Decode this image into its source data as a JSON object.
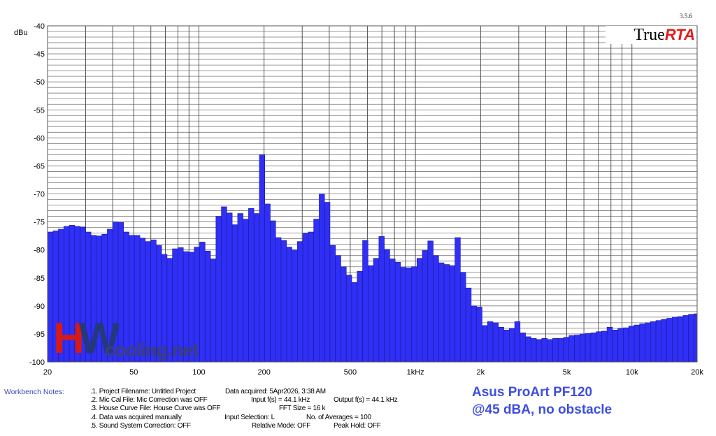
{
  "chart_data": {
    "type": "bar",
    "title": "",
    "xlabel": "",
    "ylabel": "dBu",
    "xscale": "log",
    "xlim": [
      20,
      20000
    ],
    "ylim": [
      -100,
      -40
    ],
    "grid": true,
    "bar_resolution": "1/12 octave",
    "start_hz": 20,
    "bar_color": "#2f2ff5",
    "y_ticks": [
      "-40",
      "-45",
      "-50",
      "-55",
      "-60",
      "-65",
      "-70",
      "-75",
      "-80",
      "-85",
      "-90",
      "-95",
      "-100"
    ],
    "y_tick_values": [
      -40,
      -45,
      -50,
      -55,
      -60,
      -65,
      -70,
      -75,
      -80,
      -85,
      -90,
      -95,
      -100
    ],
    "x_ticks": [
      "20",
      "50",
      "100",
      "200",
      "500",
      "1kHz",
      "2k",
      "5k",
      "10k",
      "20k"
    ],
    "x_tick_values": [
      20,
      50,
      100,
      200,
      500,
      1000,
      2000,
      5000,
      10000,
      20000
    ],
    "values": [
      -76.8,
      -76.6,
      -76.3,
      -75.8,
      -75.6,
      -75.8,
      -75.9,
      -76.8,
      -77.4,
      -77.5,
      -77.2,
      -76.3,
      -75.0,
      -75.1,
      -76.8,
      -77.4,
      -77.4,
      -77.9,
      -78.5,
      -78.2,
      -79.2,
      -80.8,
      -81.5,
      -79.8,
      -79.6,
      -80.3,
      -80.4,
      -79.5,
      -78.6,
      -80.2,
      -81.6,
      -74.0,
      -72.3,
      -73.4,
      -75.5,
      -73.5,
      -74.5,
      -72.6,
      -73.5,
      -63.0,
      -71.8,
      -74.8,
      -77.8,
      -78.3,
      -79.5,
      -80.0,
      -78.5,
      -77.0,
      -76.8,
      -74.5,
      -70.0,
      -71.5,
      -79.2,
      -81.0,
      -83.0,
      -84.5,
      -85.8,
      -83.8,
      -78.3,
      -82.8,
      -81.5,
      -77.6,
      -79.9,
      -81.6,
      -82.2,
      -83.1,
      -83.2,
      -83.0,
      -81.5,
      -80.1,
      -78.4,
      -81.0,
      -82.3,
      -82.6,
      -82.8,
      -77.8,
      -84.0,
      -86.8,
      -90.0,
      -90.2,
      -93.5,
      -92.8,
      -93.0,
      -93.8,
      -94.3,
      -94.0,
      -92.8,
      -94.8,
      -95.5,
      -95.8,
      -96.0,
      -95.8,
      -96.0,
      -95.8,
      -95.8,
      -95.6,
      -95.3,
      -95.2,
      -95.0,
      -94.9,
      -94.8,
      -94.6,
      -94.5,
      -93.8,
      -94.3,
      -94.0,
      -93.9,
      -93.6,
      -93.4,
      -93.2,
      -93.0,
      -92.8,
      -92.6,
      -92.4,
      -92.2,
      -92.0,
      -91.9,
      -91.7,
      -91.5,
      -91.4
    ]
  },
  "header": {
    "version": "3.5.6",
    "logo_text": "TrueRTA"
  },
  "watermark": {
    "text": "HWcooling.net"
  },
  "notes": {
    "title": "Workbench Notes:",
    "project": ".1. Project Filename: Untitled Project",
    "acquired": "Data acquired: 5Apr2026, 3:38 AM",
    "mic_cal": ".2. Mic Cal File: Mic Correction was OFF",
    "input_fs": "Input f(s) = 44.1 kHz",
    "output_fs": "Output f(s) = 44.1 kHz",
    "house_curve": ".3. House Curve File: House Curve was OFF",
    "fft_size": "FFT Size = 16 k",
    "manual": ".4. Data was acquired manually",
    "input_sel": "Input Selection: L",
    "averages": "No. of Averages = 100",
    "sound_system": ".5. Sound System Correction: OFF",
    "relative": "Relative Mode:  OFF",
    "peak_hold": "Peak Hold: OFF"
  },
  "annotation": {
    "line1": "Asus ProArt PF120",
    "line2": "@45 dBA, no obstacle"
  }
}
